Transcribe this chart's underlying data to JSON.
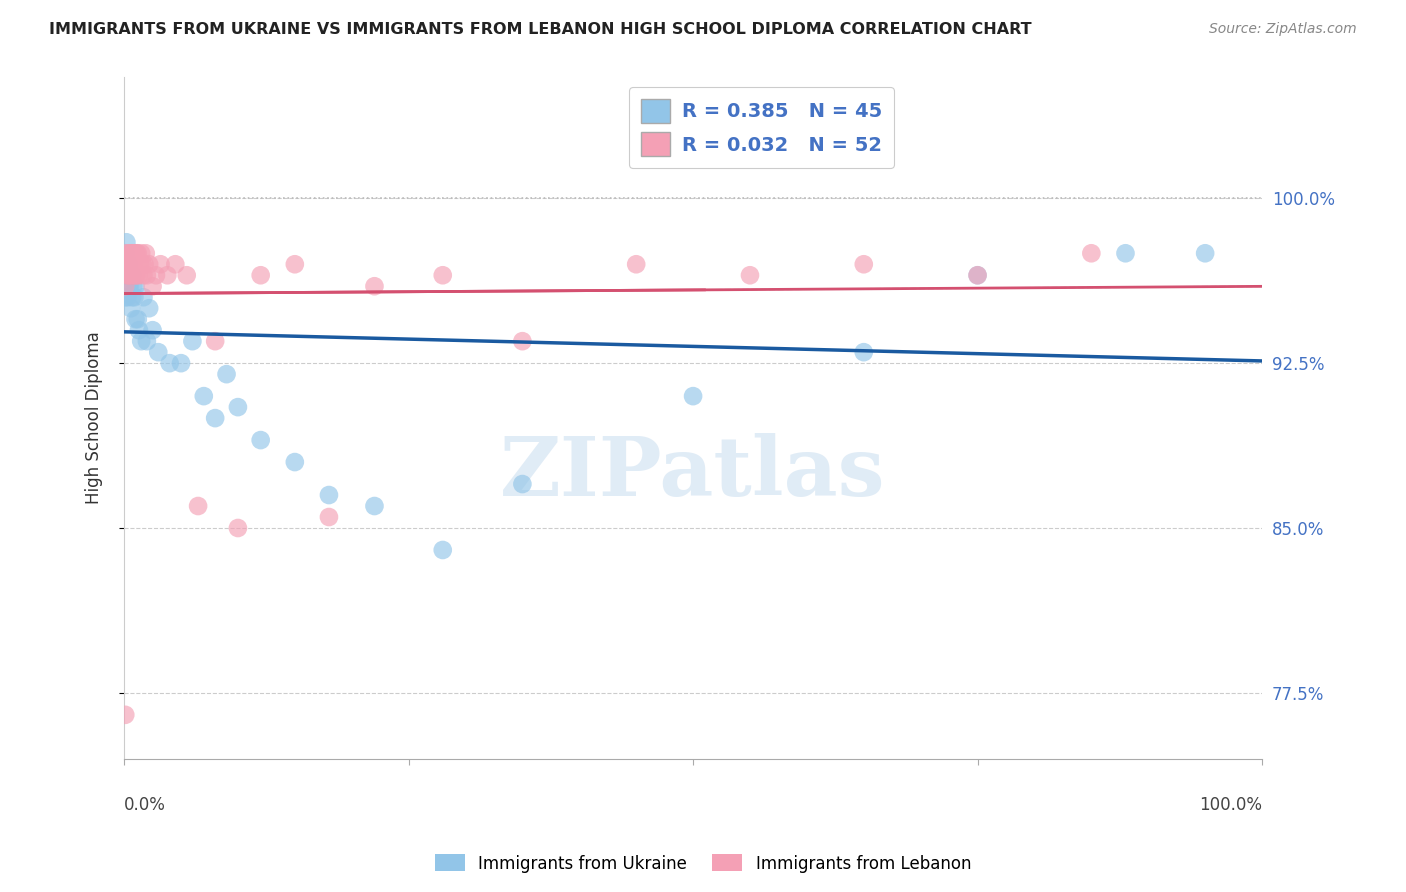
{
  "title": "IMMIGRANTS FROM UKRAINE VS IMMIGRANTS FROM LEBANON HIGH SCHOOL DIPLOMA CORRELATION CHART",
  "source": "Source: ZipAtlas.com",
  "xlabel_bottom_left": "0.0%",
  "xlabel_bottom_right": "100.0%",
  "ylabel": "High School Diploma",
  "ytick_labels": [
    "77.5%",
    "85.0%",
    "92.5%",
    "100.0%"
  ],
  "ytick_values": [
    0.775,
    0.85,
    0.925,
    1.0
  ],
  "legend_label_ukraine": "Immigrants from Ukraine",
  "legend_label_lebanon": "Immigrants from Lebanon",
  "R_ukraine": 0.385,
  "N_ukraine": 45,
  "R_lebanon": 0.032,
  "N_lebanon": 52,
  "ukraine_color": "#92C5E8",
  "lebanon_color": "#F4A0B5",
  "ukraine_line_color": "#1A5AA0",
  "lebanon_line_color": "#D45070",
  "watermark_color": "#C8DDEF",
  "watermark_text": "ZIPatlas",
  "ukraine_x": [
    0.001,
    0.001,
    0.002,
    0.002,
    0.003,
    0.003,
    0.003,
    0.004,
    0.004,
    0.005,
    0.005,
    0.006,
    0.006,
    0.007,
    0.007,
    0.008,
    0.009,
    0.01,
    0.01,
    0.012,
    0.013,
    0.015,
    0.017,
    0.02,
    0.022,
    0.025,
    0.03,
    0.04,
    0.05,
    0.06,
    0.07,
    0.08,
    0.09,
    0.1,
    0.12,
    0.15,
    0.18,
    0.22,
    0.28,
    0.35,
    0.5,
    0.65,
    0.75,
    0.88,
    0.95
  ],
  "ukraine_y": [
    0.955,
    0.975,
    0.965,
    0.98,
    0.97,
    0.955,
    0.97,
    0.97,
    0.96,
    0.965,
    0.96,
    0.965,
    0.95,
    0.965,
    0.955,
    0.96,
    0.955,
    0.96,
    0.945,
    0.945,
    0.94,
    0.935,
    0.955,
    0.935,
    0.95,
    0.94,
    0.93,
    0.925,
    0.925,
    0.935,
    0.91,
    0.9,
    0.92,
    0.905,
    0.89,
    0.88,
    0.865,
    0.86,
    0.84,
    0.87,
    0.91,
    0.93,
    0.965,
    0.975,
    0.975
  ],
  "lebanon_x": [
    0.001,
    0.001,
    0.002,
    0.002,
    0.003,
    0.003,
    0.004,
    0.004,
    0.005,
    0.005,
    0.006,
    0.006,
    0.007,
    0.007,
    0.008,
    0.008,
    0.009,
    0.009,
    0.01,
    0.01,
    0.011,
    0.011,
    0.012,
    0.013,
    0.014,
    0.015,
    0.016,
    0.017,
    0.018,
    0.019,
    0.02,
    0.022,
    0.025,
    0.028,
    0.032,
    0.038,
    0.045,
    0.055,
    0.065,
    0.08,
    0.1,
    0.12,
    0.15,
    0.18,
    0.22,
    0.28,
    0.35,
    0.45,
    0.55,
    0.65,
    0.75,
    0.85
  ],
  "lebanon_y": [
    0.765,
    0.96,
    0.975,
    0.97,
    0.965,
    0.97,
    0.965,
    0.975,
    0.97,
    0.965,
    0.975,
    0.97,
    0.975,
    0.965,
    0.975,
    0.97,
    0.975,
    0.965,
    0.975,
    0.965,
    0.975,
    0.965,
    0.975,
    0.965,
    0.97,
    0.975,
    0.97,
    0.965,
    0.97,
    0.975,
    0.965,
    0.97,
    0.96,
    0.965,
    0.97,
    0.965,
    0.97,
    0.965,
    0.86,
    0.935,
    0.85,
    0.965,
    0.97,
    0.855,
    0.96,
    0.965,
    0.935,
    0.97,
    0.965,
    0.97,
    0.965,
    0.975
  ]
}
